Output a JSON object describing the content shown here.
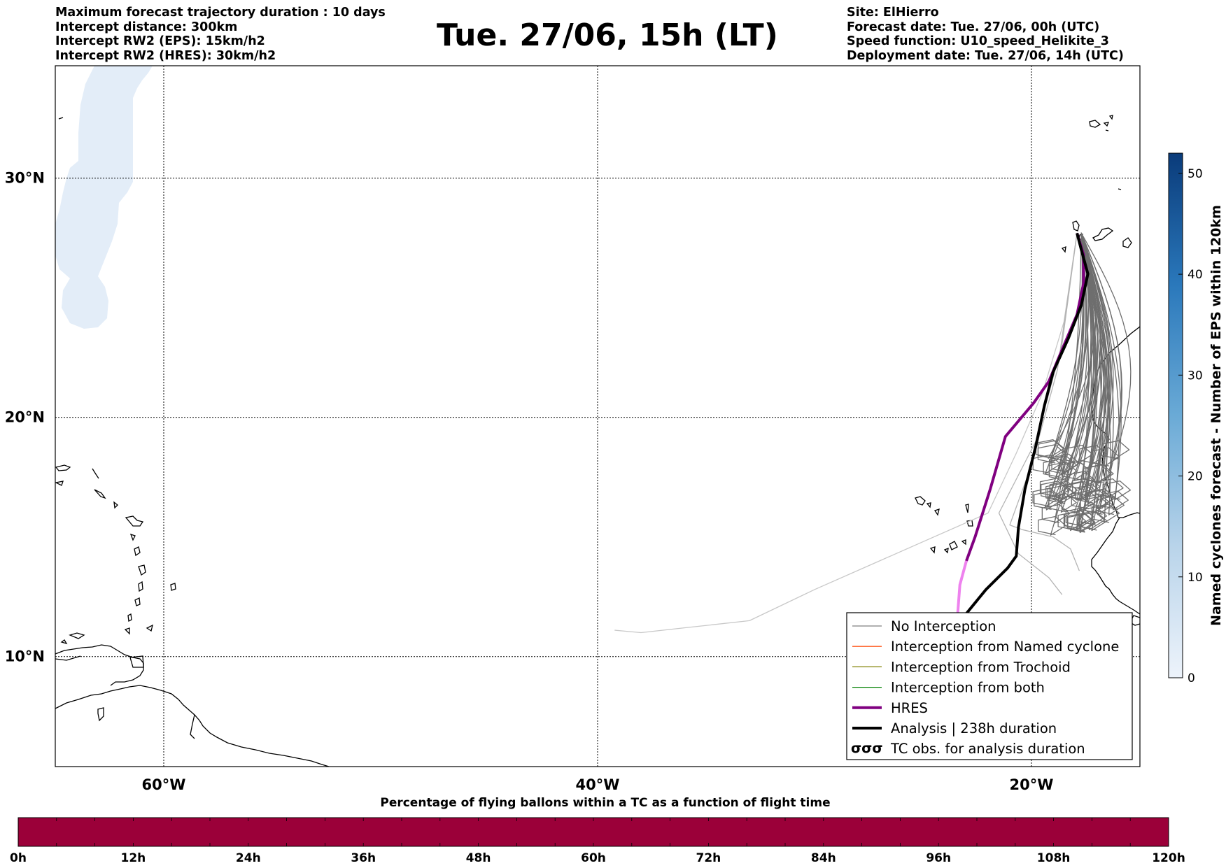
{
  "header_left": [
    "Maximum forecast trajectory duration : 10 days",
    "Intercept distance: 300km",
    "Intercept RW2 (EPS):  15km/h2",
    "Intercept RW2 (HRES): 30km/h2"
  ],
  "header_right": [
    "Site: ElHierro",
    "Forecast date: Tue. 27/06, 00h (UTC)",
    "Speed function: U10_speed_Helikite_3",
    "Deployment date: Tue. 27/06, 14h (UTC)"
  ],
  "title": "Tue. 27/06, 15h (LT)",
  "map": {
    "lon_min": -65,
    "lon_max": -15,
    "lat_min": 5.4,
    "lat_max": 34.7,
    "lat_ticks": [
      {
        "v": 30,
        "label": "30°N"
      },
      {
        "v": 20,
        "label": "20°N"
      },
      {
        "v": 10,
        "label": "10°N"
      }
    ],
    "lon_ticks": [
      {
        "v": -60,
        "label": "60°W"
      },
      {
        "v": -40,
        "label": "40°W"
      },
      {
        "v": -20,
        "label": "20°W"
      }
    ],
    "site": {
      "lon": -17.9,
      "lat": 27.7
    }
  },
  "legend": [
    {
      "label": "No Interception",
      "color": "#808080",
      "kind": "thin"
    },
    {
      "label": "Interception from Named cyclone",
      "color": "#ff5a1e",
      "kind": "thin"
    },
    {
      "label": "Interception from Trochoid",
      "color": "#808000",
      "kind": "thin"
    },
    {
      "label": "Interception from both",
      "color": "#008000",
      "kind": "thin"
    },
    {
      "label": "HRES",
      "color": "#800080",
      "kind": "thick"
    },
    {
      "label": "Analysis | 238h duration",
      "color": "#000000",
      "kind": "thick"
    },
    {
      "label": "TC obs. for analysis duration",
      "color": "#000000",
      "kind": "marker"
    }
  ],
  "colorbar": {
    "title": "Named cyclones forecast - Number of EPS within 120km",
    "ticks": [
      "0",
      "10",
      "20",
      "30",
      "40",
      "50"
    ],
    "max": 52,
    "color_low": "#e8f0fa",
    "color_high": "#0a3b7a"
  },
  "bottom_bar": {
    "title": "Percentage of flying ballons within a TC as a function of flight time",
    "color": "#9b0039",
    "labels": [
      "0h",
      "12h",
      "24h",
      "36h",
      "48h",
      "60h",
      "72h",
      "84h",
      "96h",
      "108h",
      "120h"
    ]
  },
  "trajectories": {
    "ensemble_count": 50,
    "hres": [
      [
        -17.9,
        27.7
      ],
      [
        -17.6,
        26.8
      ],
      [
        -17.6,
        25.6
      ],
      [
        -17.9,
        24.3
      ],
      [
        -18.6,
        22.8
      ],
      [
        -19.2,
        21.5
      ],
      [
        -19.9,
        20.6
      ],
      [
        -21.2,
        19.2
      ],
      [
        -21.9,
        17.0
      ],
      [
        -22.6,
        15.0
      ],
      [
        -23.0,
        14.0
      ],
      [
        -23.3,
        13.0
      ],
      [
        -23.4,
        11.8
      ]
    ],
    "analysis": [
      [
        -17.9,
        27.7
      ],
      [
        -17.7,
        27.0
      ],
      [
        -17.4,
        26.0
      ],
      [
        -17.7,
        24.7
      ],
      [
        -18.3,
        23.3
      ],
      [
        -19.0,
        21.9
      ],
      [
        -19.4,
        20.5
      ],
      [
        -19.8,
        18.8
      ],
      [
        -20.3,
        17.0
      ],
      [
        -20.6,
        15.4
      ],
      [
        -20.7,
        14.2
      ],
      [
        -21.1,
        13.7
      ],
      [
        -22.1,
        12.8
      ],
      [
        -23.0,
        11.8
      ]
    ]
  }
}
